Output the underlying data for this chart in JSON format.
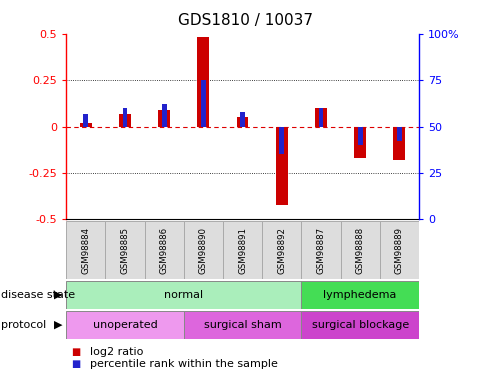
{
  "title": "GDS1810 / 10037",
  "samples": [
    "GSM98884",
    "GSM98885",
    "GSM98886",
    "GSM98890",
    "GSM98891",
    "GSM98892",
    "GSM98887",
    "GSM98888",
    "GSM98889"
  ],
  "log2_ratio": [
    0.02,
    0.07,
    0.09,
    0.48,
    0.05,
    -0.42,
    0.1,
    -0.17,
    -0.18
  ],
  "percentile_rank": [
    57,
    60,
    62,
    75,
    58,
    35,
    60,
    40,
    42
  ],
  "ylim_left": [
    -0.5,
    0.5
  ],
  "ylim_right": [
    0,
    100
  ],
  "yticks_left": [
    -0.5,
    -0.25,
    0,
    0.25,
    0.5
  ],
  "yticks_right": [
    0,
    25,
    50,
    75,
    100
  ],
  "bar_color_red": "#cc0000",
  "bar_color_blue": "#2222cc",
  "disease_state": [
    {
      "label": "normal",
      "start": 0,
      "end": 6,
      "color": "#aaeebb"
    },
    {
      "label": "lymphedema",
      "start": 6,
      "end": 9,
      "color": "#44dd55"
    }
  ],
  "protocol": [
    {
      "label": "unoperated",
      "start": 0,
      "end": 3,
      "color": "#ee99ee"
    },
    {
      "label": "surgical sham",
      "start": 3,
      "end": 6,
      "color": "#dd66dd"
    },
    {
      "label": "surgical blockage",
      "start": 6,
      "end": 9,
      "color": "#cc44cc"
    }
  ],
  "legend_red_label": "log2 ratio",
  "legend_blue_label": "percentile rank within the sample",
  "disease_state_label": "disease state",
  "protocol_label": "protocol",
  "hline_color": "#dd0000",
  "title_fontsize": 11,
  "tick_fontsize": 8,
  "label_fontsize": 8,
  "legend_fontsize": 8
}
